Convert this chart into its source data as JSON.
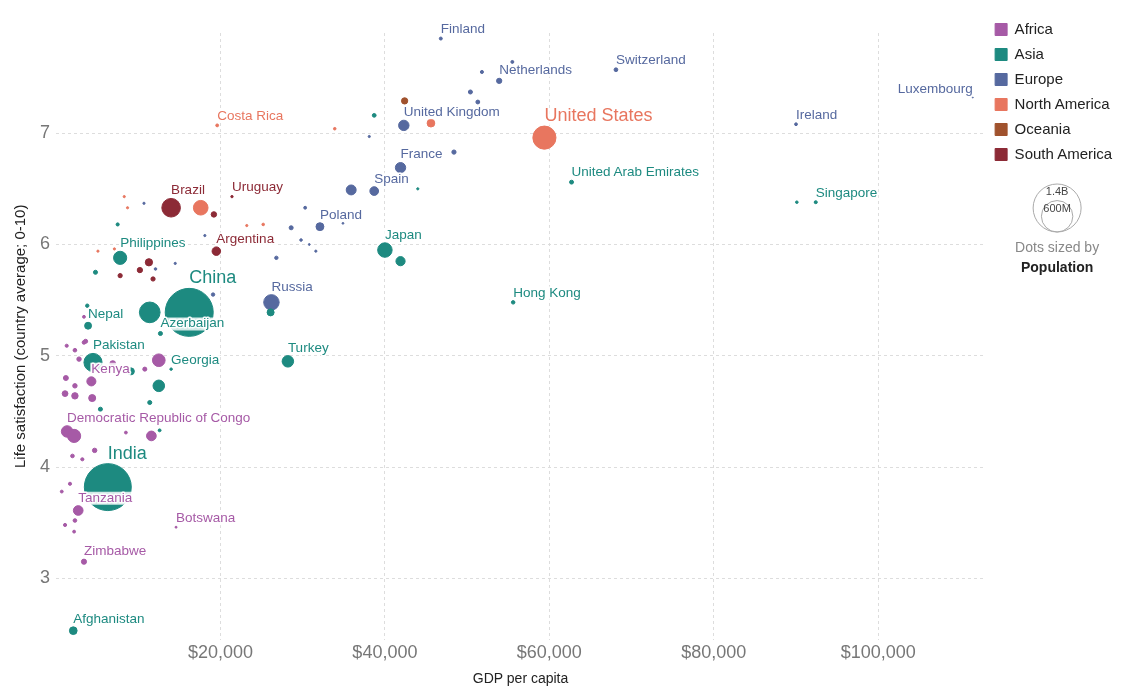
{
  "chart_data": {
    "type": "bubble",
    "xlabel": "GDP per capita",
    "ylabel": "Life satisfaction (country average; 0-10)",
    "xlim": [
      0,
      113000
    ],
    "xticks": [
      {
        "value": 20000,
        "label": "$20,000"
      },
      {
        "value": 40000,
        "label": "$40,000"
      },
      {
        "value": 60000,
        "label": "$60,000"
      },
      {
        "value": 80000,
        "label": "$80,000"
      },
      {
        "value": 100000,
        "label": "$100,000"
      }
    ],
    "ylim": [
      2.45,
      7.9
    ],
    "yticks": [
      3,
      4,
      5,
      6,
      7
    ],
    "grid": true,
    "legend": "top right",
    "size_legend": [
      {
        "value": 1400,
        "label": "1.4B"
      },
      {
        "value": 600,
        "label": "600M"
      }
    ],
    "annotations": [
      "Dots sized by",
      "Population"
    ],
    "series": [
      {
        "name": "Africa",
        "color": "#a65aa6",
        "x": [
          1350,
          4300,
          2700,
          14600,
          3400,
          2200,
          11600,
          12500,
          6900,
          10800,
          1200,
          1100,
          2300,
          2300,
          4400,
          8500,
          4700,
          2000,
          3200,
          1700,
          700,
          1100,
          2200,
          2300,
          1300,
          2300,
          3600,
          2800,
          3400,
          3400
        ],
        "values": [
          4.32,
          4.77,
          3.61,
          3.46,
          3.15,
          4.28,
          4.28,
          4.96,
          4.93,
          4.88,
          4.8,
          4.66,
          4.64,
          4.73,
          4.62,
          4.31,
          4.15,
          4.1,
          4.07,
          3.85,
          3.78,
          3.48,
          3.42,
          3.52,
          5.09,
          5.05,
          5.13,
          4.97,
          5.35,
          5.12
        ],
        "sizes": [
          80,
          50,
          57,
          2.3,
          16,
          105,
          57,
          97,
          20,
          10,
          15,
          20,
          25,
          12,
          30,
          5,
          12,
          8,
          6,
          6,
          5,
          6,
          5,
          8,
          6,
          8,
          10,
          12,
          5,
          8
        ],
        "value_labels": [
          "Democratic Republic of Congo",
          "Kenya",
          "Tanzania",
          "Botswana",
          "Zimbabwe",
          null,
          null,
          null,
          null,
          null,
          null,
          null,
          null,
          null,
          null,
          null,
          null,
          null,
          null,
          null,
          null,
          null,
          null,
          null,
          null,
          null,
          null,
          null,
          null,
          null
        ]
      },
      {
        "name": "Asia",
        "color": "#1d8a80",
        "x": [
          16200,
          6300,
          40000,
          55600,
          62700,
          92400,
          28200,
          7800,
          3900,
          12700,
          14000,
          2100,
          4500,
          11400,
          9100,
          12500,
          11400,
          12600,
          5400,
          7500,
          4800,
          38700,
          44000,
          41900,
          26100,
          3800,
          90100
        ],
        "values": [
          5.39,
          3.82,
          5.95,
          5.48,
          6.56,
          6.38,
          4.95,
          5.88,
          5.27,
          5.2,
          4.88,
          2.53,
          4.94,
          5.39,
          4.86,
          4.73,
          4.58,
          4.33,
          4.52,
          6.18,
          5.75,
          7.16,
          6.5,
          5.85,
          5.39,
          5.45,
          6.38
        ],
        "sizes": [
          1400,
          1340,
          127,
          7.4,
          9.4,
          5.6,
          80,
          105,
          29,
          10,
          3.7,
          36,
          200,
          260,
          30,
          81,
          10,
          5,
          10,
          6,
          10,
          8.5,
          3,
          51,
          30,
          7,
          4
        ],
        "value_labels": [
          "China",
          "India",
          "Japan",
          "Hong Kong",
          "United Arab Emirates",
          "Singapore",
          "Turkey",
          "Philippines",
          "Nepal",
          "Azerbaijan",
          "Georgia",
          "Afghanistan",
          "Pakistan",
          null,
          null,
          null,
          null,
          null,
          null,
          null,
          null,
          null,
          null,
          null,
          null,
          null,
          null
        ]
      },
      {
        "name": "Europe",
        "color": "#56699f",
        "x": [
          46800,
          53900,
          68100,
          42300,
          41900,
          38700,
          32100,
          26200,
          90000,
          111500,
          51800,
          55500,
          50400,
          51300,
          35900,
          48400,
          38100,
          30300,
          28600,
          29800,
          30800,
          31600,
          26800,
          34900,
          18100,
          19100,
          14500,
          10700,
          12100
        ],
        "values": [
          7.85,
          7.47,
          7.57,
          7.07,
          6.69,
          6.48,
          6.16,
          5.48,
          7.08,
          7.32,
          7.55,
          7.64,
          7.37,
          7.28,
          6.49,
          6.83,
          6.97,
          6.33,
          6.15,
          6.04,
          6.0,
          5.94,
          5.88,
          6.19,
          6.08,
          5.55,
          5.83,
          6.37,
          5.78
        ],
        "sizes": [
          5.5,
          17,
          8.5,
          66,
          65,
          46,
          38,
          145,
          4.8,
          0.6,
          5.8,
          5.3,
          10,
          9,
          60,
          11,
          3,
          5,
          10,
          4,
          2,
          3,
          7,
          2,
          3,
          7,
          3,
          3,
          4
        ],
        "value_labels": [
          "Finland",
          "Netherlands",
          "Switzerland",
          "United Kingdom",
          "France",
          "Spain",
          "Poland",
          "Russia",
          "Ireland",
          "Luxembourg",
          null,
          null,
          null,
          null,
          null,
          null,
          null,
          null,
          null,
          null,
          null,
          null,
          null,
          null,
          null,
          null,
          null,
          null,
          null
        ]
      },
      {
        "name": "North America",
        "color": "#e8765f",
        "x": [
          59400,
          19600,
          33900,
          45600,
          17600,
          8300,
          8700,
          25200,
          23200,
          5100,
          7100
        ],
        "values": [
          6.96,
          7.07,
          7.04,
          7.09,
          6.33,
          6.43,
          6.33,
          6.18,
          6.17,
          5.94,
          5.96
        ],
        "sizes": [
          325,
          5,
          4,
          36,
          130,
          3,
          3,
          4,
          3,
          3,
          3
        ],
        "value_labels": [
          "United States",
          "Costa Rica",
          null,
          null,
          null,
          null,
          null,
          null,
          null,
          null,
          null
        ]
      },
      {
        "name": "Oceania",
        "color": "#a0522d",
        "x": [
          42400
        ],
        "values": [
          7.29
        ],
        "sizes": [
          24
        ]
      },
      {
        "name": "South America",
        "color": "#8c2a36",
        "x": [
          14000,
          21400,
          19500,
          19200,
          11300,
          10200,
          7800,
          11800
        ],
        "values": [
          6.33,
          6.43,
          5.94,
          6.27,
          5.84,
          5.77,
          5.72,
          5.69
        ],
        "sizes": [
          210,
          3.4,
          44,
          18,
          32,
          17,
          11,
          11
        ],
        "value_labels": [
          "Brazil",
          "Uruguay",
          "Argentina",
          null,
          null,
          null,
          null,
          null
        ]
      }
    ]
  }
}
